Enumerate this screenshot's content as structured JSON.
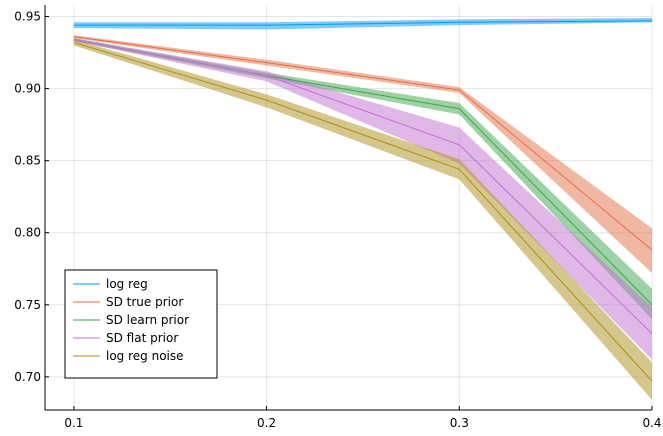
{
  "chart_data": {
    "type": "line",
    "title": "",
    "xlabel": "",
    "ylabel": "",
    "xlim": [
      0.085,
      0.4
    ],
    "ylim": [
      0.677,
      0.958
    ],
    "grid": true,
    "legend_position": "bottom-left",
    "x_ticks": [
      {
        "value": 0.1,
        "label": "0.1"
      },
      {
        "value": 0.2,
        "label": "0.2"
      },
      {
        "value": 0.3,
        "label": "0.3"
      },
      {
        "value": 0.4,
        "label": "0.4"
      }
    ],
    "y_ticks": [
      {
        "value": 0.7,
        "label": "0.70"
      },
      {
        "value": 0.75,
        "label": "0.75"
      },
      {
        "value": 0.8,
        "label": "0.80"
      },
      {
        "value": 0.85,
        "label": "0.85"
      },
      {
        "value": 0.9,
        "label": "0.90"
      },
      {
        "value": 0.95,
        "label": "0.95"
      }
    ],
    "x": [
      0.1,
      0.2,
      0.3,
      0.4
    ],
    "series": [
      {
        "name": "log reg",
        "color": "#009af9",
        "values": [
          0.944,
          0.944,
          0.946,
          0.947
        ],
        "lower": [
          0.942,
          0.941,
          0.944,
          0.946
        ],
        "upper": [
          0.946,
          0.946,
          0.948,
          0.949
        ]
      },
      {
        "name": "SD true prior",
        "color": "#e26f46",
        "values": [
          0.936,
          0.918,
          0.899,
          0.788
        ],
        "lower": [
          0.935,
          0.916,
          0.897,
          0.772
        ],
        "upper": [
          0.937,
          0.92,
          0.901,
          0.803
        ]
      },
      {
        "name": "SD learn prior",
        "color": "#3da44d",
        "values": [
          0.934,
          0.909,
          0.886,
          0.75
        ],
        "lower": [
          0.933,
          0.907,
          0.882,
          0.74
        ],
        "upper": [
          0.935,
          0.911,
          0.89,
          0.761
        ]
      },
      {
        "name": "SD flat prior",
        "color": "#c271d2",
        "values": [
          0.934,
          0.909,
          0.861,
          0.73
        ],
        "lower": [
          0.933,
          0.905,
          0.848,
          0.712
        ],
        "upper": [
          0.935,
          0.912,
          0.873,
          0.748
        ]
      },
      {
        "name": "log reg noise",
        "color": "#ac8d18",
        "values": [
          0.932,
          0.892,
          0.844,
          0.697
        ],
        "lower": [
          0.93,
          0.887,
          0.837,
          0.684
        ],
        "upper": [
          0.934,
          0.896,
          0.851,
          0.71
        ]
      }
    ]
  }
}
